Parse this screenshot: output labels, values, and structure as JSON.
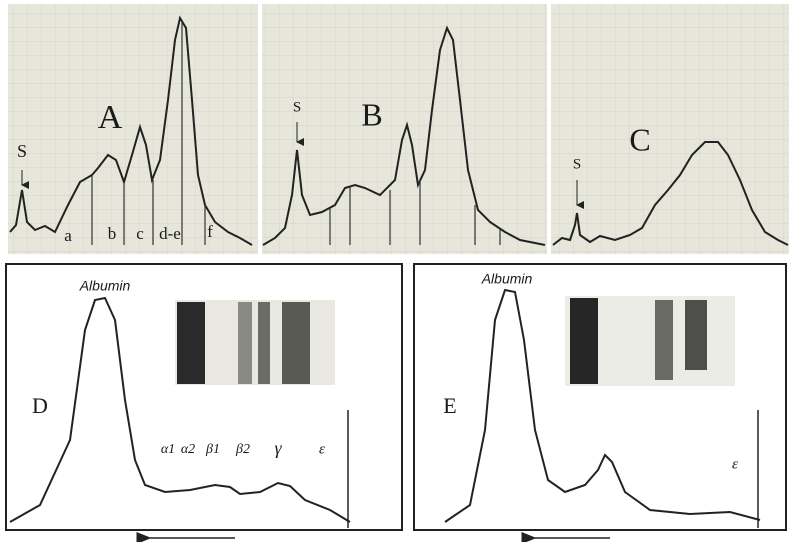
{
  "panel_a": {
    "letter": "A",
    "peak_marker": "S",
    "fraction_labels": [
      "a",
      "b",
      "c",
      "d-e",
      "f"
    ]
  },
  "panel_b": {
    "letter": "B",
    "peak_marker": "S"
  },
  "panel_c": {
    "letter": "C",
    "peak_marker": "S"
  },
  "panel_d": {
    "letter": "D",
    "peak_label": "Albumin",
    "fraction_labels": [
      "α1",
      "α2",
      "β1",
      "β2",
      "γ",
      "ε"
    ]
  },
  "panel_e": {
    "letter": "E",
    "peak_label": "Albumin",
    "fraction_label": "ε"
  }
}
